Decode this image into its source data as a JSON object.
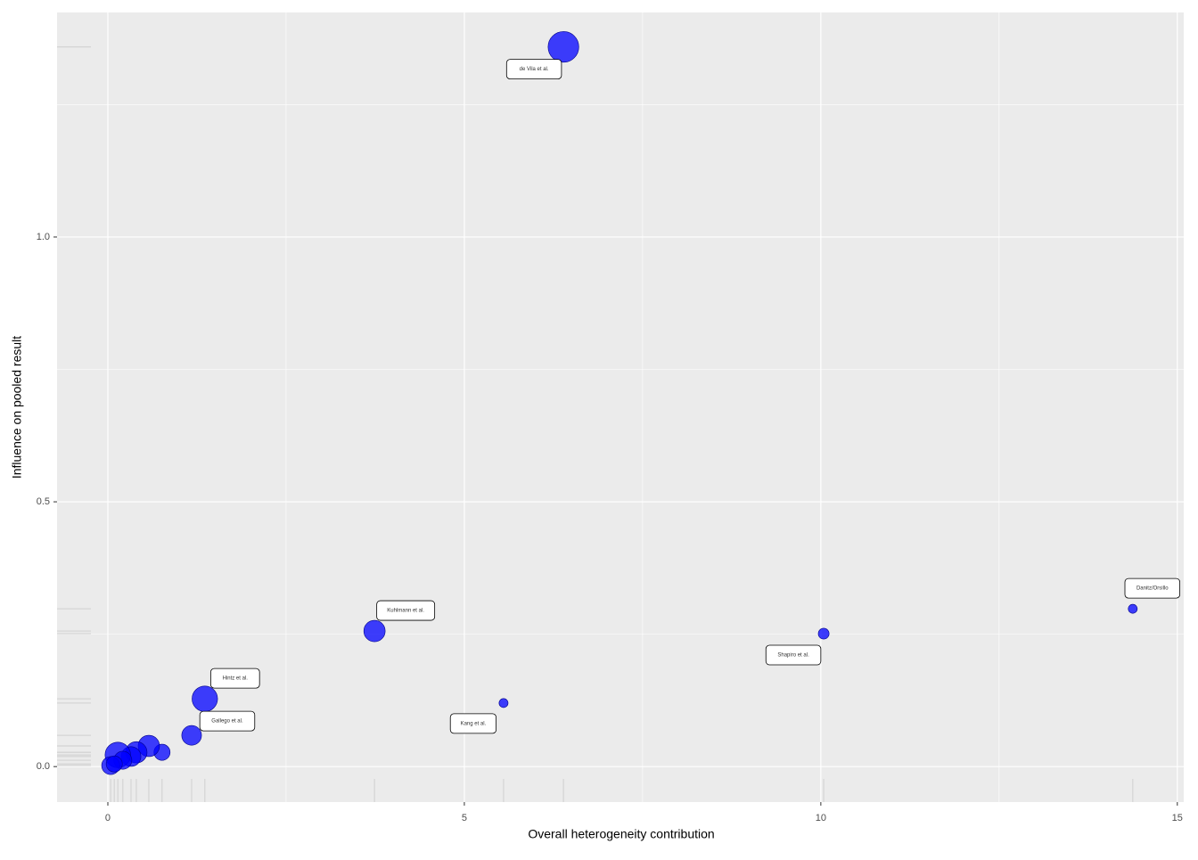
{
  "chart_data": {
    "type": "scatter",
    "x_label": "Overall heterogeneity contribution",
    "y_label": "Influence on pooled result",
    "x": [
      6.39,
      14.375,
      10.04,
      3.74,
      5.55,
      1.36,
      1.175,
      0.76,
      0.575,
      0.4,
      0.325,
      0.14,
      0.21,
      0.04,
      0.09
    ],
    "values": [
      1.359,
      0.298,
      0.251,
      0.256,
      0.12,
      0.128,
      0.059,
      0.027,
      0.039,
      0.027,
      0.019,
      0.022,
      0.012,
      0.002,
      0.005
    ],
    "sizes": [
      29,
      2.5,
      3.6,
      14,
      2.5,
      20,
      12,
      8,
      14,
      14,
      12,
      20,
      10,
      10,
      8
    ],
    "labels": [
      "de Vila et al.",
      "Danitz/Orsillo",
      "Shapiro et al.",
      "Kuhlmann et al.",
      "Kang et al.",
      "Hintz et al.",
      "Gallego et al.",
      null,
      null,
      null,
      null,
      null,
      null,
      null,
      null
    ],
    "color": "#0000ff",
    "xlim": [
      -0.7125,
      15.09
    ],
    "ylim": [
      -0.067,
      1.424
    ],
    "xticks": [
      0,
      5,
      10,
      15
    ],
    "yticks": [
      {
        "value": 0,
        "label": "0.0"
      },
      {
        "value": 0.5,
        "label": "0.5"
      },
      {
        "value": 1,
        "label": "1.0"
      }
    ],
    "grid": true,
    "rug": true
  }
}
